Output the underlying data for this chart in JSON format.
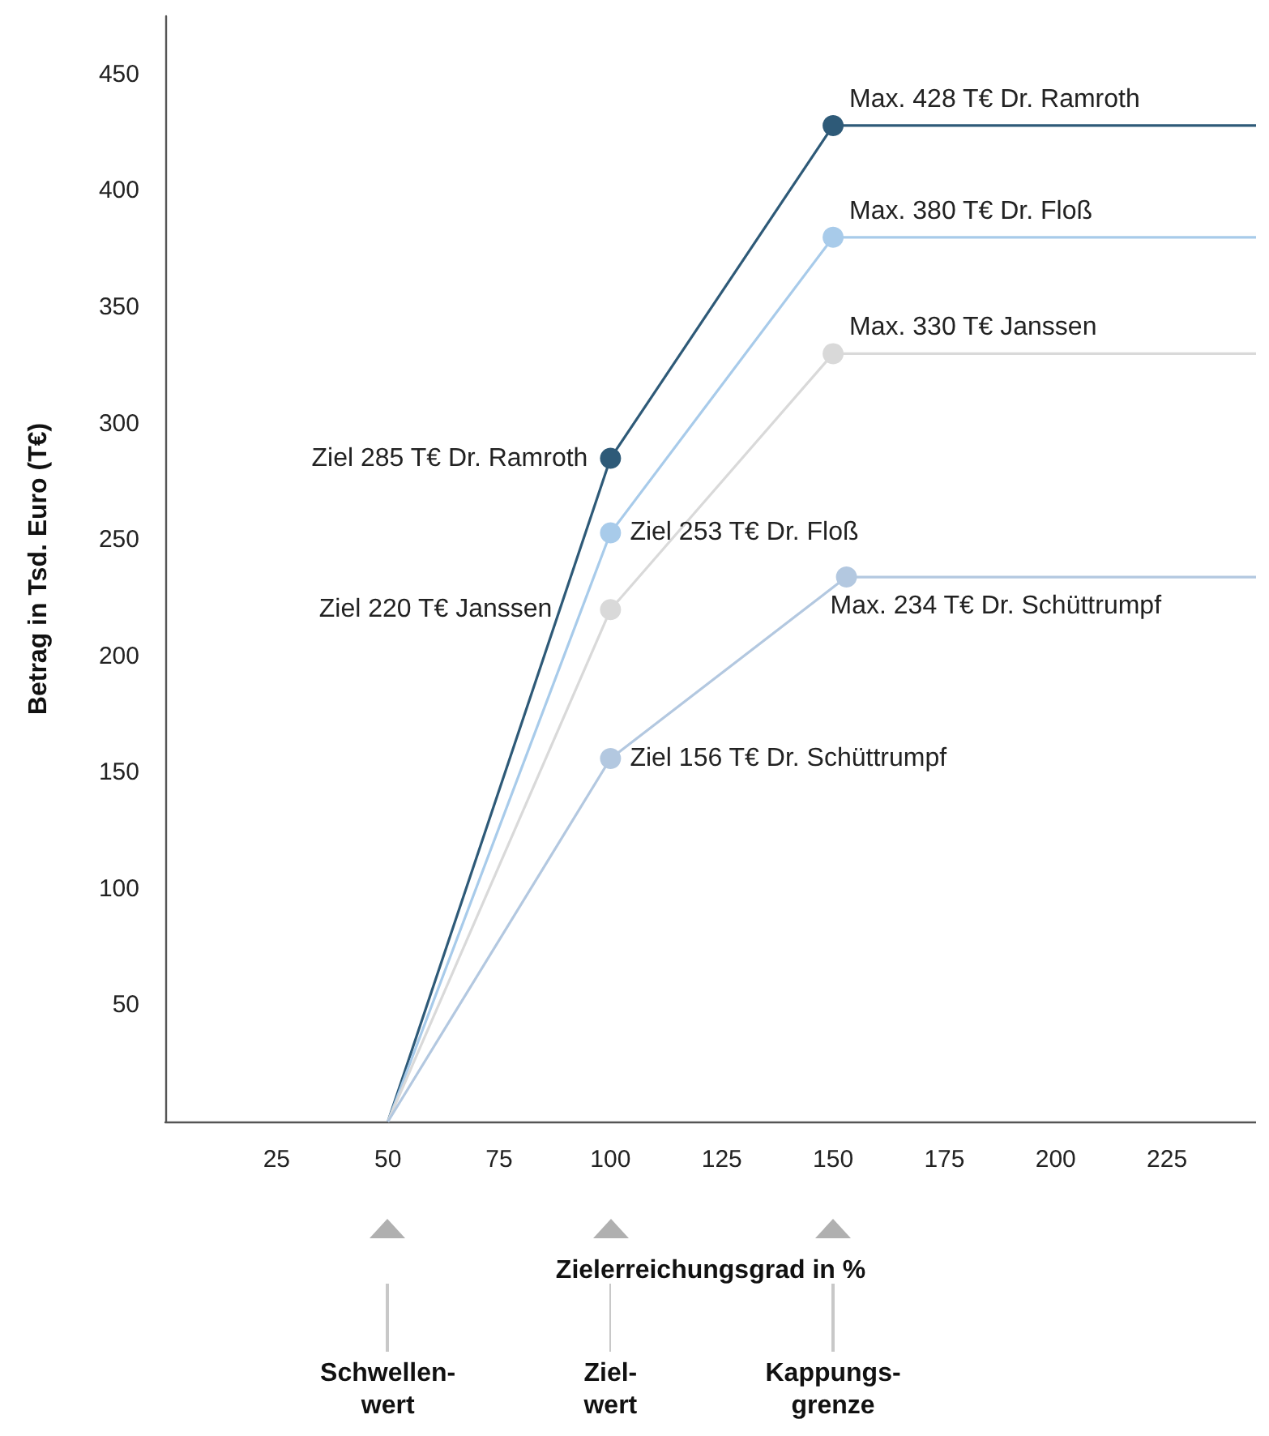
{
  "chart_data": {
    "type": "line",
    "xlabel": "Zielerreichungsgrad in %",
    "ylabel": "Betrag in Tsd. Euro (T€)",
    "xlim": [
      0,
      245
    ],
    "ylim": [
      0,
      475
    ],
    "xticks": [
      25,
      50,
      75,
      100,
      125,
      150,
      175,
      200,
      225
    ],
    "yticks": [
      50,
      100,
      150,
      200,
      250,
      300,
      350,
      400,
      450
    ],
    "grid": false,
    "marker": "circle",
    "line_style": "solid",
    "series": [
      {
        "color": "#2e5a78",
        "x": [
          50,
          100,
          150,
          245
        ],
        "values": [
          0,
          285,
          428,
          428
        ]
      },
      {
        "color": "#a8cbea",
        "x": [
          50,
          100,
          150,
          245
        ],
        "values": [
          0,
          253,
          380,
          380
        ]
      },
      {
        "color": "#d9d9d9",
        "x": [
          50,
          100,
          150,
          245
        ],
        "values": [
          0,
          220,
          330,
          330
        ]
      },
      {
        "color": "#b3c8e0",
        "x": [
          50,
          100,
          153,
          245
        ],
        "values": [
          0,
          156,
          234,
          234
        ]
      }
    ],
    "annotations": [
      {
        "text": "Ziel 285 T€ Dr. Ramroth",
        "x": 100,
        "y": 285
      },
      {
        "text": "Max. 428 T€ Dr. Ramroth",
        "x": 150,
        "y": 428
      },
      {
        "text": "Ziel 253 T€ Dr. Floß",
        "x": 100,
        "y": 253
      },
      {
        "text": "Max. 380 T€ Dr. Floß",
        "x": 150,
        "y": 380
      },
      {
        "text": "Ziel 220 T€ Janssen",
        "x": 100,
        "y": 220
      },
      {
        "text": "Max. 330 T€ Janssen",
        "x": 150,
        "y": 330
      },
      {
        "text": "Ziel 156 T€ Dr. Schüttrumpf",
        "x": 100,
        "y": 156
      },
      {
        "text": "Max. 234 T€ Dr. Schüttrumpf",
        "x": 153,
        "y": 234
      }
    ],
    "ref_lines": [
      {
        "axis": "x",
        "value": 50,
        "label": "Schwellen-\nwert",
        "color": "#b0b0b0"
      },
      {
        "axis": "x",
        "value": 100,
        "label": "Ziel-\nwert",
        "color": "#b0b0b0"
      },
      {
        "axis": "x",
        "value": 150,
        "label": "Kappungs-\ngrenze",
        "color": "#b0b0b0"
      }
    ]
  }
}
